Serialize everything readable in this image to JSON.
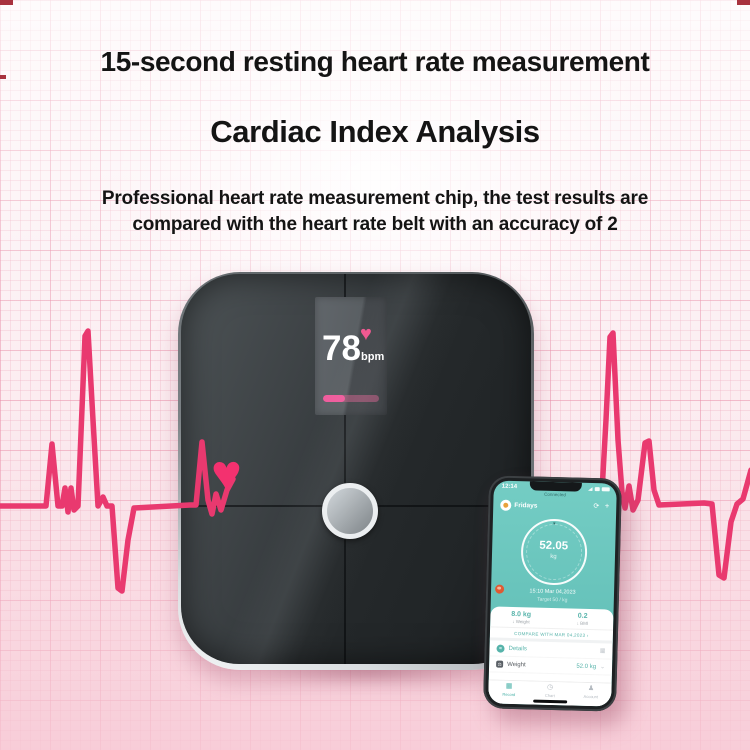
{
  "colors": {
    "ecg_pink": "#e9396f",
    "heart_pink": "#f3316f",
    "app_teal": "#66c2ba",
    "accent_maroon": "#a8323e"
  },
  "headlines": {
    "title": "15-second resting heart rate measurement",
    "subtitle": "Cardiac Index Analysis",
    "description_line1": "Professional heart rate measurement chip, the test results are",
    "description_line2": "compared with the heart rate belt with an accuracy of 2"
  },
  "scale_display": {
    "heart_rate": "78",
    "unit": "bpm",
    "heart_icon": "♥",
    "progress_percent": 40
  },
  "ecg": {
    "heart_icon": "♥"
  },
  "phone": {
    "status_time": "12:14",
    "connection_status": "Connected",
    "user_name": "Fridays",
    "sync_icon": "⟳",
    "add_icon": "+",
    "gauge": {
      "pointer_icon": "▾",
      "value": "52.05",
      "unit": "kg"
    },
    "session_datetime": "15:10 Mar 04,2023",
    "session_target": "Target 50 / kg",
    "stats": [
      {
        "value": "8.0 kg",
        "label": "↓ Weight"
      },
      {
        "value": "0.2",
        "label": "↓ BMI"
      }
    ],
    "compare_link": "COMPARE WITH MAR 04,2023 ›",
    "rows": {
      "details": {
        "icon": "≡",
        "label": "Details",
        "right_icon": "▦"
      },
      "weight": {
        "icon": "⚖",
        "label": "Weight",
        "value": "52.0 kg",
        "chevron": "⌄"
      }
    },
    "tabs": [
      {
        "icon": "▦",
        "label": "Record",
        "active": true
      },
      {
        "icon": "◷",
        "label": "Chart",
        "active": false
      },
      {
        "icon": "♟",
        "label": "Account",
        "active": false
      }
    ]
  }
}
